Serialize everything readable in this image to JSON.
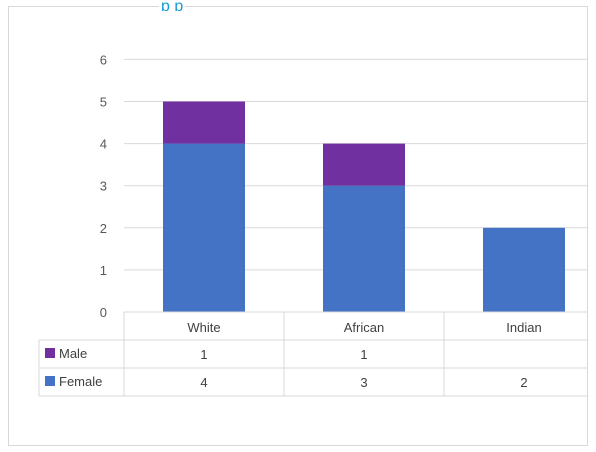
{
  "chart_data": {
    "type": "bar",
    "stacked": true,
    "title_fragment": "p p",
    "categories": [
      "White",
      "African",
      "Indian"
    ],
    "series": [
      {
        "name": "Female",
        "values": [
          4,
          3,
          2
        ],
        "color": "#4472c4"
      },
      {
        "name": "Male",
        "values": [
          1,
          1,
          null
        ],
        "color": "#7030a0"
      }
    ],
    "table_rows": [
      {
        "name": "Male",
        "cells": [
          "1",
          "1",
          ""
        ]
      },
      {
        "name": "Female",
        "cells": [
          "4",
          "3",
          "2"
        ]
      }
    ],
    "yticks": [
      "0",
      "1",
      "2",
      "3",
      "4",
      "5",
      "6"
    ],
    "ylim": [
      0,
      6
    ],
    "grid": true,
    "legend": "data-table"
  }
}
